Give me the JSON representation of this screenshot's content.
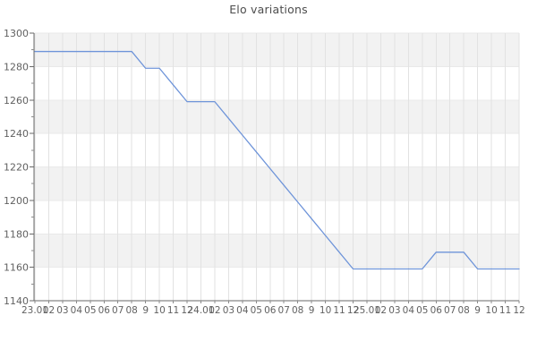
{
  "title": "Elo variations",
  "chart_data": {
    "type": "line",
    "title": "Elo variations",
    "xlabel": "",
    "ylabel": "",
    "categories": [
      "23.01",
      "02",
      "03",
      "04",
      "05",
      "06",
      "07",
      "08",
      "9",
      "10",
      "11",
      "12",
      "24.01",
      "02",
      "03",
      "04",
      "05",
      "06",
      "07",
      "08",
      "9",
      "10",
      "11",
      "12",
      "25.01",
      "02",
      "03",
      "04",
      "05",
      "06",
      "07",
      "08",
      "9",
      "10",
      "11",
      "12"
    ],
    "series": [
      {
        "name": "Elo",
        "values": [
          1289,
          1289,
          1289,
          1289,
          1289,
          1289,
          1289,
          1289,
          1279,
          1279,
          1269,
          1259,
          1259,
          1259,
          1249,
          1239,
          1229,
          1219,
          1209,
          1199,
          1189,
          1179,
          1169,
          1159,
          1159,
          1159,
          1159,
          1159,
          1159,
          1169,
          1169,
          1169,
          1159,
          1159,
          1159,
          1159
        ]
      }
    ],
    "ylim": [
      1140,
      1300
    ],
    "ytick_step": 20,
    "ytick_minor_step": 10,
    "yticks": [
      1140,
      1160,
      1180,
      1200,
      1220,
      1240,
      1260,
      1280,
      1300
    ],
    "grid": true,
    "legend": "none",
    "plot_style": "alternating-horizontal-bands",
    "colors": {
      "line": "#6e94d9",
      "band": "#f2f2f2",
      "grid_v": "#e2e2e2",
      "grid_h": "#e9e9e9",
      "axis": "#686868",
      "tick": "#8c8c8c",
      "text": "#616161",
      "title": "#4d4d4d",
      "background": "#ffffff"
    }
  }
}
